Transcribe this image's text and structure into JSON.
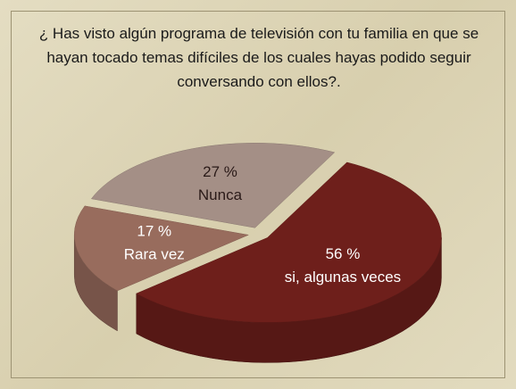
{
  "chart_data": {
    "type": "pie",
    "title": "¿ Has visto algún programa de televisión con tu familia en que se hayan tocado temas difíciles de los cuales hayas podido seguir conversando con ellos?.",
    "categories": [
      "Nunca",
      "si, algunas veces",
      "Rara vez"
    ],
    "values": [
      27,
      56,
      17
    ],
    "value_labels": [
      "27 %",
      "56 %",
      "17 %"
    ],
    "colors": [
      "#a48f86",
      "#6e1f1b",
      "#986c5d"
    ]
  }
}
